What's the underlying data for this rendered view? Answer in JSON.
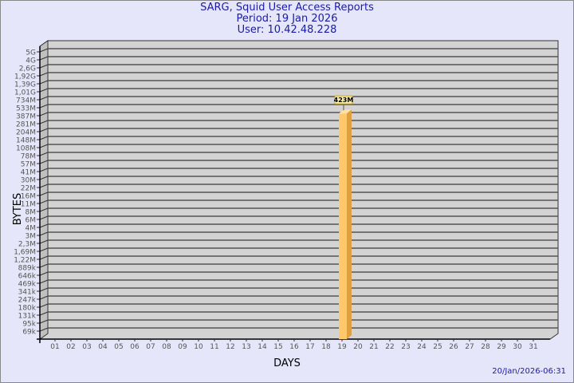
{
  "title": "SARG, Squid User Access Reports",
  "period": "Period: 19 Jan 2026",
  "user": "User: 10.42.48.228",
  "timestamp": "20/Jan/2026-06:31",
  "chart_data": {
    "type": "bar",
    "title": "SARG, Squid User Access Reports",
    "xlabel": "DAYS",
    "ylabel": "BYTES",
    "scale": "log",
    "grid": true,
    "categories": [
      "01",
      "02",
      "03",
      "04",
      "05",
      "06",
      "07",
      "08",
      "09",
      "10",
      "11",
      "12",
      "13",
      "14",
      "15",
      "16",
      "17",
      "18",
      "19",
      "20",
      "21",
      "22",
      "23",
      "24",
      "25",
      "26",
      "27",
      "28",
      "29",
      "30",
      "31"
    ],
    "values": [
      null,
      null,
      null,
      null,
      null,
      null,
      null,
      null,
      null,
      null,
      null,
      null,
      null,
      null,
      null,
      null,
      null,
      null,
      "423M",
      null,
      null,
      null,
      null,
      null,
      null,
      null,
      null,
      null,
      null,
      null,
      null
    ],
    "data_labels": {
      "19": "423M"
    },
    "yticks": [
      "5G",
      "4G",
      "2,6G",
      "1,92G",
      "1,39G",
      "1,01G",
      "734M",
      "533M",
      "387M",
      "281M",
      "204M",
      "148M",
      "108M",
      "78M",
      "57M",
      "41M",
      "30M",
      "22M",
      "16M",
      "11M",
      "8M",
      "6M",
      "4M",
      "3M",
      "2,3M",
      "1,69M",
      "1,22M",
      "889k",
      "646k",
      "469k",
      "341k",
      "247k",
      "180k",
      "131k",
      "95k",
      "69k"
    ],
    "colors": {
      "background": "#e6e6fa",
      "plot": "#d3d3d3",
      "bar": "#ffc96b",
      "bar_side": "#e0a040",
      "title": "#1a1aa6"
    }
  }
}
